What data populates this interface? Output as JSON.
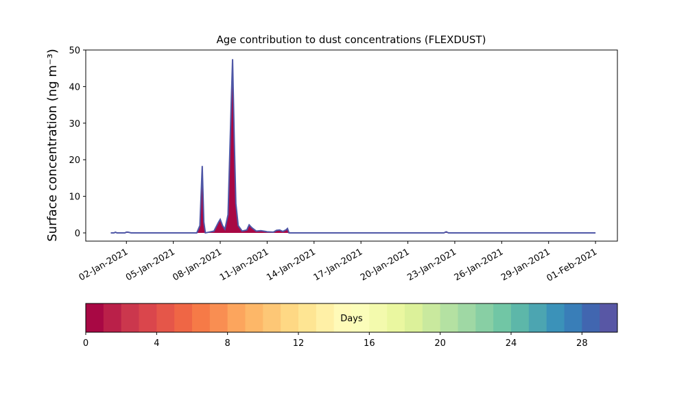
{
  "chart_data": {
    "type": "area",
    "title": "Age contribution to dust concentrations (FLEXDUST)",
    "y_label": "Surface concentration (ng m⁻³)",
    "x": [
      1,
      1.2,
      1.3,
      1.4,
      1.9,
      2.0,
      2.1,
      2.3,
      6.5,
      6.7,
      6.85,
      6.95,
      7.05,
      7.6,
      7.9,
      8.0,
      8.15,
      8.3,
      8.5,
      8.7,
      8.79,
      8.9,
      9.0,
      9.15,
      9.4,
      9.7,
      9.85,
      10.0,
      10.3,
      10.6,
      10.9,
      11.0,
      11.4,
      11.6,
      11.8,
      12.0,
      12.2,
      12.3,
      12.4,
      22.3,
      22.45,
      22.6,
      32
    ],
    "series": [
      {
        "color": "#a80844",
        "edgecolor": "#4e56a6",
        "values": [
          0,
          0,
          0.2,
          0,
          0,
          0.2,
          0.2,
          0,
          0,
          2,
          18.3,
          3,
          0,
          0.5,
          3,
          3.7,
          2,
          1,
          5,
          35,
          47.5,
          25,
          8,
          2,
          0.5,
          0.8,
          2.2,
          1.5,
          0.5,
          0.6,
          0.4,
          0.3,
          0.2,
          0.7,
          0.8,
          0.4,
          0.8,
          1.2,
          0,
          0,
          0.3,
          0,
          0
        ]
      }
    ],
    "xlim": [
      -0.6,
      33.4
    ],
    "xticks": [
      {
        "value": 2,
        "label": "02-Jan-2021"
      },
      {
        "value": 5,
        "label": "05-Jan-2021"
      },
      {
        "value": 8,
        "label": "08-Jan-2021"
      },
      {
        "value": 11,
        "label": "11-Jan-2021"
      },
      {
        "value": 14,
        "label": "14-Jan-2021"
      },
      {
        "value": 17,
        "label": "17-Jan-2021"
      },
      {
        "value": 20,
        "label": "20-Jan-2021"
      },
      {
        "value": 23,
        "label": "23-Jan-2021"
      },
      {
        "value": 26,
        "label": "26-Jan-2021"
      },
      {
        "value": 29,
        "label": "29-Jan-2021"
      },
      {
        "value": 32,
        "label": "01-Feb-2021"
      }
    ],
    "ylim": [
      -2.25,
      50
    ],
    "yticks": [
      0,
      10,
      20,
      30,
      40,
      50
    ],
    "colorbar": {
      "label": "Days",
      "lim": [
        0,
        30
      ],
      "ticks": [
        0,
        4,
        8,
        12,
        16,
        20,
        24,
        28
      ],
      "colors": [
        "#a80844",
        "#ba2049",
        "#cb374d",
        "#da464c",
        "#e55649",
        "#ef6645",
        "#f67a47",
        "#f98e52",
        "#fca55d",
        "#fdb768",
        "#fdc776",
        "#fed884",
        "#fee593",
        "#fff0a6",
        "#fffab8",
        "#fbfdba",
        "#f3faad",
        "#eaf7a0",
        "#dcf19a",
        "#c9e99e",
        "#b4e1a2",
        "#9fd8a4",
        "#88cfa4",
        "#71c6a5",
        "#5db7a9",
        "#4ca5b1",
        "#3b92b9",
        "#397eb8",
        "#4166b0",
        "#5857a5"
      ]
    }
  }
}
